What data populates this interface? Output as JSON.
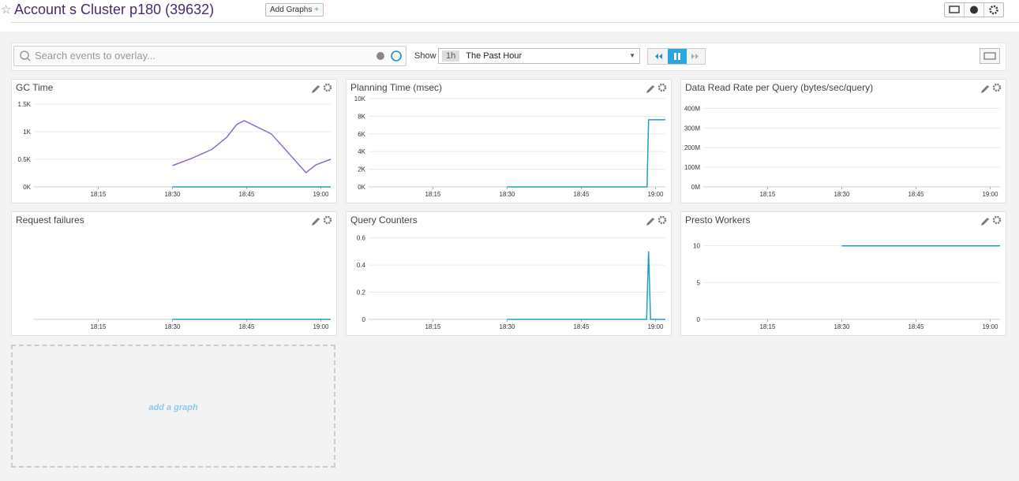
{
  "header": {
    "title": "Account s Cluster p180 (39632)",
    "add_button": "Add Graphs"
  },
  "toolbar": {
    "search_placeholder": "Search events to overlay...",
    "show_label": "Show",
    "range_short": "1h",
    "range_text": "The Past Hour"
  },
  "add_widget": "add a graph",
  "chart_data": [
    {
      "type": "line",
      "title": "GC Time",
      "xlim": [
        1082,
        1142
      ],
      "xticks": [
        {
          "value": 1095,
          "label": "18:15"
        },
        {
          "value": 1110,
          "label": "18:30"
        },
        {
          "value": 1125,
          "label": "18:45"
        },
        {
          "value": 1140,
          "label": "19:00"
        }
      ],
      "ylim": [
        0,
        1600
      ],
      "yticks": [
        {
          "value": 0,
          "label": "0K"
        },
        {
          "value": 500,
          "label": "0.5K"
        },
        {
          "value": 1000,
          "label": "1K"
        },
        {
          "value": 1500,
          "label": "1.5K"
        }
      ],
      "grid": true,
      "series": [
        {
          "color": "#8e6bc8",
          "x": [
            1110,
            1114,
            1118,
            1121,
            1123,
            1124.5,
            1130,
            1137,
            1139,
            1142
          ],
          "values": [
            386,
            520,
            680,
            900,
            1130,
            1200,
            960,
            257,
            400,
            500
          ]
        },
        {
          "color": "#1f9ec6",
          "x": [
            1110,
            1142
          ],
          "values": [
            0,
            0
          ]
        }
      ]
    },
    {
      "type": "line",
      "title": "Planning Time (msec)",
      "xlim": [
        1082,
        1142
      ],
      "xticks": [
        {
          "value": 1095,
          "label": "18:15"
        },
        {
          "value": 1110,
          "label": "18:30"
        },
        {
          "value": 1125,
          "label": "18:45"
        },
        {
          "value": 1140,
          "label": "19:00"
        }
      ],
      "ylim": [
        0,
        10000
      ],
      "yticks": [
        {
          "value": 0,
          "label": "0K"
        },
        {
          "value": 2000,
          "label": "2K"
        },
        {
          "value": 4000,
          "label": "4K"
        },
        {
          "value": 6000,
          "label": "6K"
        },
        {
          "value": 8000,
          "label": "8K"
        },
        {
          "value": 10000,
          "label": "10K"
        }
      ],
      "grid": true,
      "series": [
        {
          "color": "#1f9ec6",
          "x": [
            1110,
            1138.3,
            1138.6,
            1142
          ],
          "values": [
            0,
            0,
            7600,
            7600
          ]
        }
      ]
    },
    {
      "type": "line",
      "title": "Data Read Rate per Query (bytes/sec/query)",
      "xlim": [
        1082,
        1142
      ],
      "xticks": [
        {
          "value": 1095,
          "label": "18:15"
        },
        {
          "value": 1110,
          "label": "18:30"
        },
        {
          "value": 1125,
          "label": "18:45"
        },
        {
          "value": 1140,
          "label": "19:00"
        }
      ],
      "ylim": [
        0,
        450000000
      ],
      "yticks": [
        {
          "value": 0,
          "label": "0M"
        },
        {
          "value": 100000000,
          "label": "100M"
        },
        {
          "value": 200000000,
          "label": "200M"
        },
        {
          "value": 300000000,
          "label": "300M"
        },
        {
          "value": 400000000,
          "label": "400M"
        }
      ],
      "grid": true,
      "series": []
    },
    {
      "type": "line",
      "title": "Request failures",
      "xlim": [
        1082,
        1142
      ],
      "xticks": [
        {
          "value": 1095,
          "label": "18:15"
        },
        {
          "value": 1110,
          "label": "18:30"
        },
        {
          "value": 1125,
          "label": "18:45"
        },
        {
          "value": 1140,
          "label": "19:00"
        }
      ],
      "ylim": [
        0,
        1
      ],
      "yticks": [],
      "grid": true,
      "series": [
        {
          "color": "#1f9ec6",
          "x": [
            1110,
            1142
          ],
          "values": [
            0,
            0
          ]
        }
      ]
    },
    {
      "type": "line",
      "title": "Query Counters",
      "xlim": [
        1082,
        1142
      ],
      "xticks": [
        {
          "value": 1095,
          "label": "18:15"
        },
        {
          "value": 1110,
          "label": "18:30"
        },
        {
          "value": 1125,
          "label": "18:45"
        },
        {
          "value": 1140,
          "label": "19:00"
        }
      ],
      "ylim": [
        0,
        0.65
      ],
      "yticks": [
        0,
        0.2,
        0.4,
        0.6
      ],
      "grid": true,
      "series": [
        {
          "color": "#1f9ec6",
          "x": [
            1110,
            1138.2,
            1138.6,
            1139,
            1142
          ],
          "values": [
            0,
            0,
            0.5,
            0,
            0
          ]
        }
      ]
    },
    {
      "type": "line",
      "title": "Presto Workers",
      "xlim": [
        1082,
        1142
      ],
      "xticks": [
        {
          "value": 1095,
          "label": "18:15"
        },
        {
          "value": 1110,
          "label": "18:30"
        },
        {
          "value": 1125,
          "label": "18:45"
        },
        {
          "value": 1140,
          "label": "19:00"
        }
      ],
      "ylim": [
        0,
        12
      ],
      "yticks": [
        0,
        5,
        10
      ],
      "grid": true,
      "series": [
        {
          "color": "#1f9ec6",
          "x": [
            1110,
            1142
          ],
          "values": [
            10,
            10
          ]
        }
      ]
    }
  ]
}
